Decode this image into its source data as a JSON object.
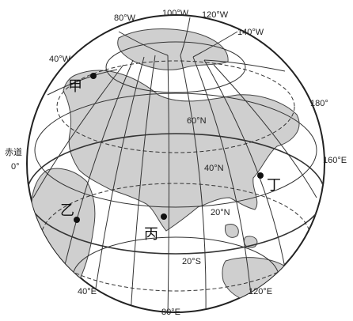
{
  "meridian_labels": {
    "w80": "80°W",
    "w100": "100°W",
    "w120": "120°W",
    "w140": "140°W",
    "w40": "40°W",
    "e180": "180°",
    "e160": "160°E",
    "e40": "40°E",
    "e80": "80°E",
    "e120": "120°E"
  },
  "parallel_labels": {
    "n60": "60°N",
    "n40": "40°N",
    "n20": "20°N",
    "s20": "20°S"
  },
  "equator_label": "赤道",
  "equator_degree": "0°",
  "points": {
    "jia": "甲",
    "yi": "乙",
    "bing": "丙",
    "ding": "丁"
  },
  "colors": {
    "land": "#cfcfcf",
    "ocean": "#ffffff",
    "line": "#333333"
  }
}
